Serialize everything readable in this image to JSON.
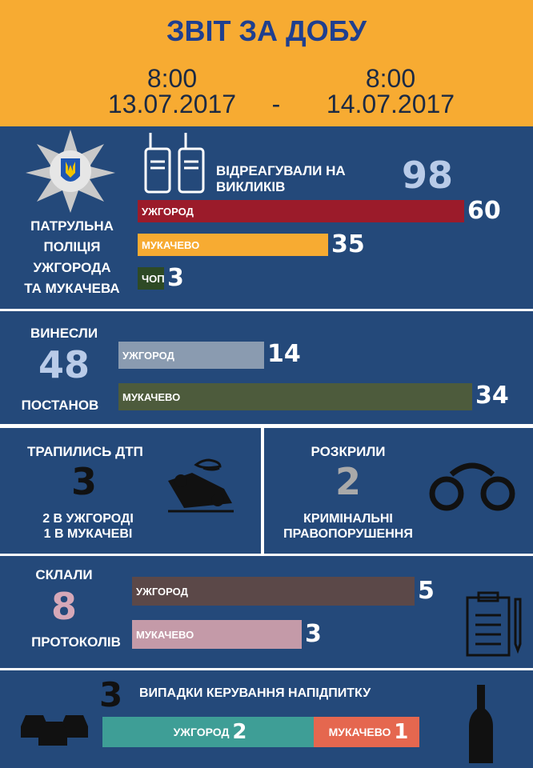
{
  "header": {
    "title": "ЗВІТ ЗА ДОБУ",
    "from": {
      "time": "8:00",
      "date": "13.07.2017"
    },
    "separator": "-",
    "to": {
      "time": "8:00",
      "date": "14.07.2017"
    }
  },
  "calls": {
    "org": [
      "ПАТРУЛЬНА",
      "ПОЛІЦІЯ",
      "УЖГОРОДА",
      "ТА МУКАЧЕВА"
    ],
    "label": [
      "ВІДРЕАГУВАЛИ НА",
      "ВИКЛИКІВ"
    ],
    "total": 98,
    "items": [
      {
        "name": "УЖГОРОД",
        "value": 60
      },
      {
        "name": "МУКАЧЕВО",
        "value": 35
      },
      {
        "name": "ЧОП",
        "value": 3
      }
    ]
  },
  "rulings": {
    "label_top": "ВИНЕСЛИ",
    "total": 48,
    "label_bottom": "ПОСТАНОВ",
    "items": [
      {
        "name": "УЖГОРОД",
        "value": 14
      },
      {
        "name": "МУКАЧЕВО",
        "value": 34
      }
    ]
  },
  "accidents": {
    "label": "ТРАПИЛИСЬ ДТП",
    "total": 3,
    "details": [
      "2 В УЖГОРОДІ",
      "1 В МУКАЧЕВІ"
    ]
  },
  "crimes": {
    "label": "РОЗКРИЛИ",
    "total": 2,
    "details": [
      "КРИМІНАЛЬНІ",
      "ПРАВОПОРУШЕННЯ"
    ]
  },
  "protocols": {
    "label_top": "СКЛАЛИ",
    "total": 8,
    "label_bottom": "ПРОТОКОЛІВ",
    "items": [
      {
        "name": "УЖГОРОД",
        "value": 5
      },
      {
        "name": "МУКАЧЕВО",
        "value": 3
      }
    ]
  },
  "drunk": {
    "total": 3,
    "label": "ВИПАДКИ КЕРУВАННЯ НАПІДПИТКУ",
    "items": [
      {
        "name": "УЖГОРОД",
        "value": 2
      },
      {
        "name": "МУКАЧЕВО",
        "value": 1
      }
    ]
  }
}
